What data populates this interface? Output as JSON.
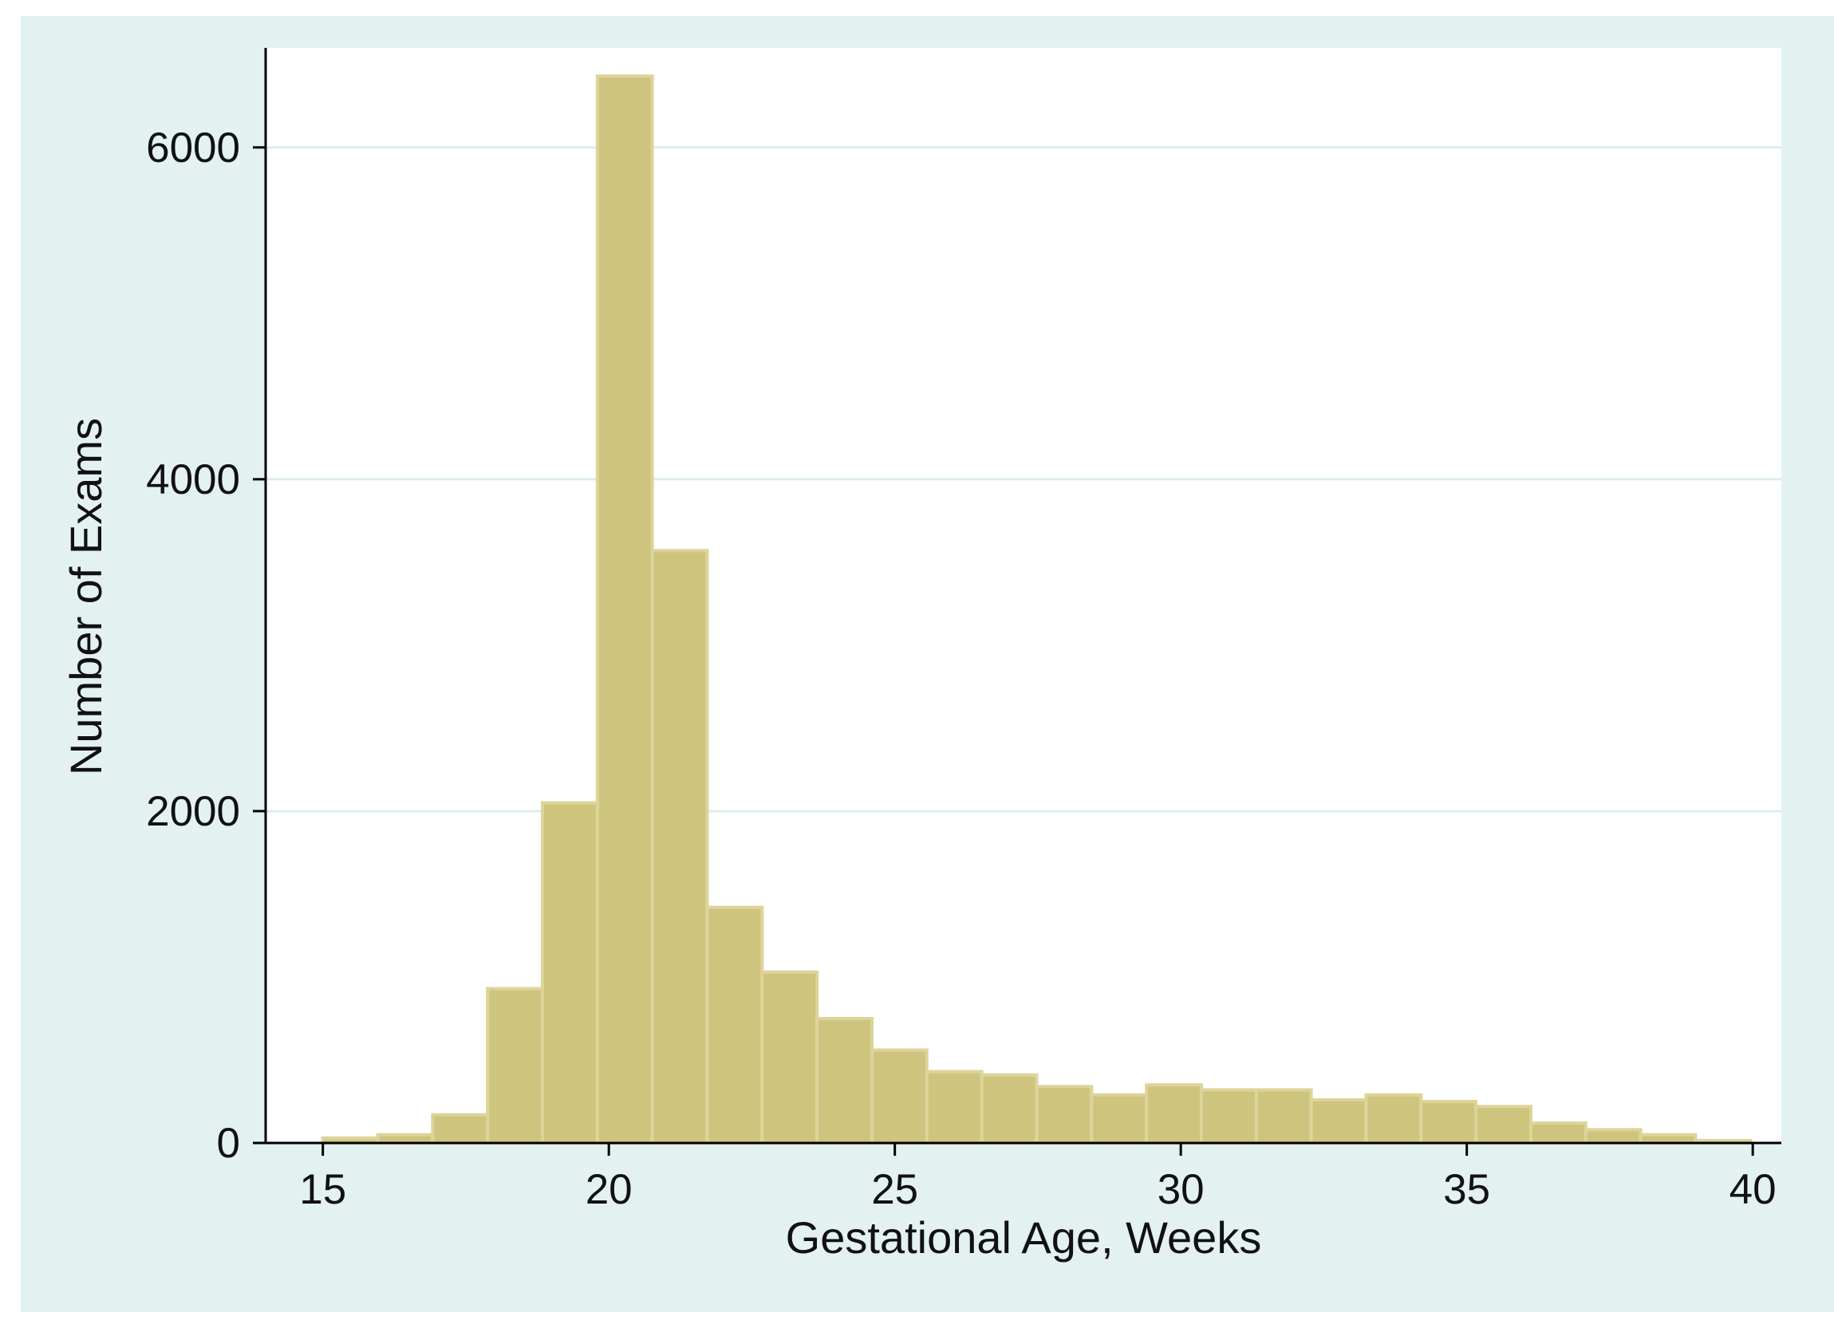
{
  "chart_data": {
    "type": "bar",
    "title": "",
    "xlabel": "Gestational Age, Weeks",
    "ylabel": "Number of Exams",
    "xlim": [
      14,
      40.5
    ],
    "ylim": [
      0,
      6600
    ],
    "xticks": [
      15,
      20,
      25,
      30,
      35,
      40
    ],
    "yticks": [
      0,
      2000,
      4000,
      6000
    ],
    "grid": true,
    "legend": "none",
    "bin_width": 0.96,
    "bins": [
      {
        "start": 15.0,
        "value": 30
      },
      {
        "start": 15.96,
        "value": 50
      },
      {
        "start": 16.92,
        "value": 170
      },
      {
        "start": 17.88,
        "value": 930
      },
      {
        "start": 18.84,
        "value": 2050
      },
      {
        "start": 19.8,
        "value": 6430
      },
      {
        "start": 20.76,
        "value": 3570
      },
      {
        "start": 21.72,
        "value": 1420
      },
      {
        "start": 22.68,
        "value": 1030
      },
      {
        "start": 23.64,
        "value": 750
      },
      {
        "start": 24.6,
        "value": 560
      },
      {
        "start": 25.56,
        "value": 430
      },
      {
        "start": 26.52,
        "value": 410
      },
      {
        "start": 27.48,
        "value": 340
      },
      {
        "start": 28.44,
        "value": 290
      },
      {
        "start": 29.4,
        "value": 350
      },
      {
        "start": 30.36,
        "value": 320
      },
      {
        "start": 31.32,
        "value": 320
      },
      {
        "start": 32.28,
        "value": 260
      },
      {
        "start": 33.24,
        "value": 290
      },
      {
        "start": 34.2,
        "value": 250
      },
      {
        "start": 35.16,
        "value": 220
      },
      {
        "start": 36.12,
        "value": 120
      },
      {
        "start": 37.08,
        "value": 80
      },
      {
        "start": 38.04,
        "value": 50
      },
      {
        "start": 39.0,
        "value": 15
      }
    ],
    "colors": {
      "outer_background": "#e4f1f1",
      "plot_background": "#ffffff",
      "bar_fill": "#cfc47e",
      "bar_edge": "#ddd49a",
      "gridline": "#dcecec",
      "axis": "#000000"
    }
  }
}
